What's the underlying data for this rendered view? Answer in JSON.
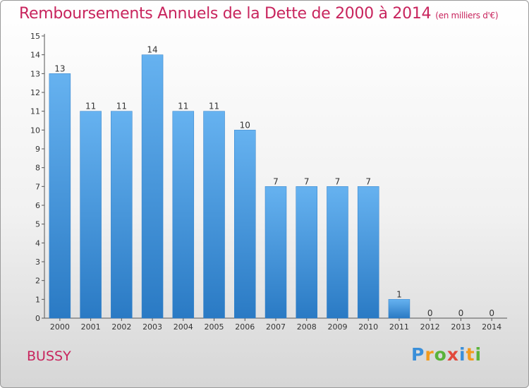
{
  "header": {
    "title": "Remboursements Annuels de la Dette de 2000 à 2014",
    "unit": "(en milliers d'€)"
  },
  "commune": "BUSSY",
  "logo": {
    "text": "Proxiti",
    "colors": [
      "#3a8fd9",
      "#f29b1d",
      "#5ab33a",
      "#e2483b",
      "#3a8fd9",
      "#f29b1d",
      "#5ab33a"
    ]
  },
  "chart_data": {
    "type": "bar",
    "categories": [
      "2000",
      "2001",
      "2002",
      "2003",
      "2004",
      "2005",
      "2006",
      "2007",
      "2008",
      "2009",
      "2010",
      "2011",
      "2012",
      "2013",
      "2014"
    ],
    "values": [
      13,
      11,
      11,
      14,
      11,
      11,
      10,
      7,
      7,
      7,
      7,
      1,
      0,
      0,
      0
    ],
    "ylim": [
      0,
      15
    ],
    "yticks": [
      0,
      1,
      2,
      3,
      4,
      5,
      6,
      7,
      8,
      9,
      10,
      11,
      12,
      13,
      14,
      15
    ],
    "grid": false,
    "bar_color": "#4a9ee6",
    "text_color": "#c8245d"
  }
}
